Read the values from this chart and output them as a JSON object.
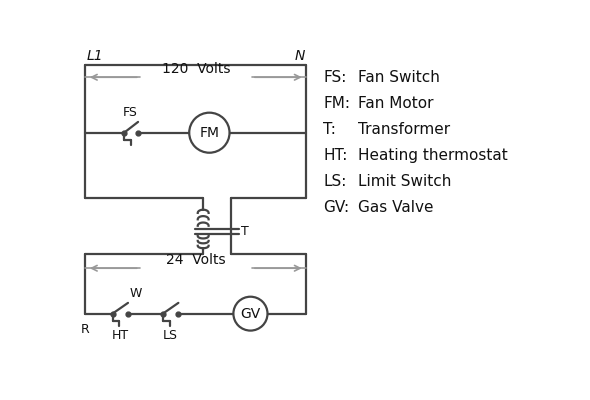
{
  "legend": [
    [
      "FS:",
      "Fan Switch"
    ],
    [
      "FM:",
      "Fan Motor"
    ],
    [
      "T:",
      "Transformer"
    ],
    [
      "HT:",
      "Heating thermostat"
    ],
    [
      "LS:",
      "Limit Switch"
    ],
    [
      "GV:",
      "Gas Valve"
    ]
  ],
  "line_color": "#444444",
  "bg_color": "#ffffff",
  "text_color": "#111111"
}
